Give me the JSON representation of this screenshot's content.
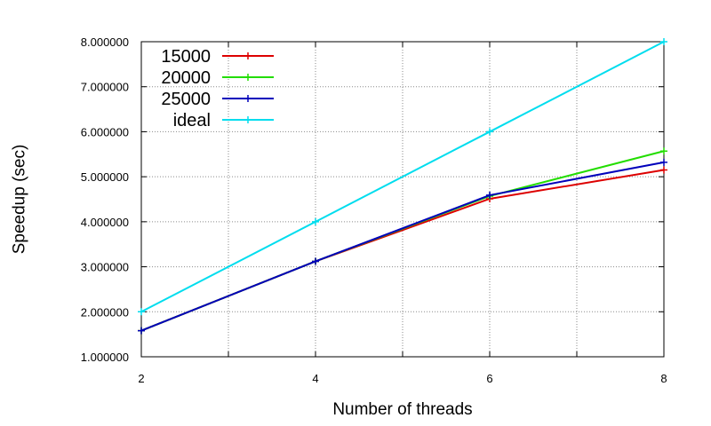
{
  "chart_data": {
    "type": "line",
    "title": "",
    "xlabel": "Number of threads",
    "ylabel": "Speedup (sec)",
    "x": [
      2,
      4,
      6,
      8
    ],
    "xlim": [
      2,
      8
    ],
    "ylim": [
      1,
      8
    ],
    "x_ticks": [
      2,
      3,
      4,
      5,
      6,
      7,
      8
    ],
    "x_tick_labels": [
      "2",
      "",
      "4",
      "",
      "6",
      "",
      "8"
    ],
    "y_ticks": [
      1,
      2,
      3,
      4,
      5,
      6,
      7,
      8
    ],
    "y_tick_labels": [
      "1.000000",
      "2.000000",
      "3.000000",
      "4.000000",
      "5.000000",
      "6.000000",
      "7.000000",
      "8.000000"
    ],
    "grid": true,
    "legend_position": "top-left",
    "series": [
      {
        "name": "15000",
        "color": "#dd0000",
        "values": [
          1.58,
          3.12,
          4.51,
          5.15
        ]
      },
      {
        "name": "20000",
        "color": "#22dd00",
        "values": [
          1.58,
          3.12,
          4.57,
          5.57
        ]
      },
      {
        "name": "25000",
        "color": "#0000bb",
        "values": [
          1.58,
          3.12,
          4.59,
          5.32
        ]
      },
      {
        "name": "ideal",
        "color": "#00ddee",
        "values": [
          2.0,
          4.0,
          6.0,
          8.0
        ]
      }
    ]
  }
}
